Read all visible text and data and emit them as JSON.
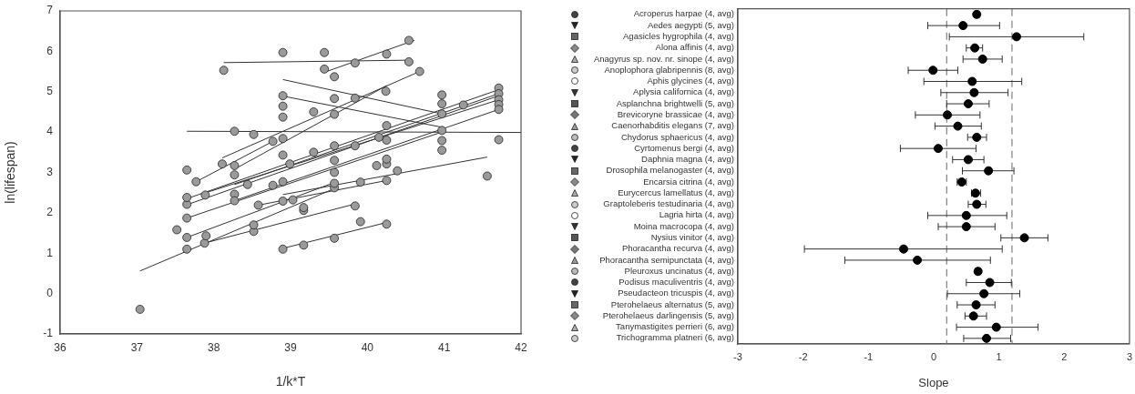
{
  "chart_data": [
    {
      "type": "scatter",
      "xlabel": "1/k*T",
      "ylabel": "ln(lifespan)",
      "xlim": [
        36,
        42
      ],
      "xticks": [
        36,
        37,
        38,
        39,
        40,
        41,
        42
      ],
      "ylim": [
        -1,
        7
      ],
      "yticks": [
        -1,
        0,
        1,
        2,
        3,
        4,
        5,
        6,
        7
      ],
      "series": [
        {
          "color": "#9a9a9a",
          "marker": "circle",
          "x": [
            37.04,
            38.9,
            39.17,
            39.57,
            39.91,
            40.25,
            39.84,
            39.17,
            38.52,
            38.52,
            37.88,
            37.9,
            37.65,
            37.65,
            37.52,
            37.65,
            37.65,
            37.65,
            38.13,
            38.9,
            39.44,
            40.54,
            39.44,
            39.84,
            40.25,
            40.54,
            39.57,
            40.68,
            39.84,
            38.52,
            38.11,
            38.9,
            39.57,
            38.9,
            38.9,
            40.24,
            40.97,
            41.71,
            38.27,
            39.3,
            39.57,
            38.77,
            38.9,
            37.65,
            37.77,
            38.27,
            38.27,
            37.89,
            38.27,
            38.27,
            38.44,
            38.77,
            38.9,
            38.9,
            38.99,
            40.12,
            40.25,
            40.39,
            41.56,
            39.91,
            40.25,
            39.57,
            38.58,
            38.9,
            39.03,
            39.17,
            39.57,
            39.57,
            39.57,
            39.57,
            40.25,
            40.25,
            40.25,
            40.97,
            40.97,
            40.97,
            40.97,
            40.97,
            41.71,
            41.71,
            41.71,
            41.71,
            41.71,
            41.25,
            40.15,
            39.84,
            39.3
          ],
          "values": [
            -0.39,
            1.1,
            1.2,
            1.37,
            1.78,
            1.72,
            2.17,
            2.06,
            1.54,
            1.7,
            1.25,
            1.43,
            1.1,
            1.39,
            1.58,
            1.87,
            2.21,
            2.38,
            5.53,
            5.97,
            5.97,
            5.74,
            5.56,
            5.71,
            5.93,
            6.27,
            5.37,
            5.5,
            4.84,
            3.94,
            3.21,
            4.9,
            4.83,
            4.64,
            4.37,
            5.01,
            4.92,
            3.81,
            4.02,
            4.5,
            4.44,
            3.77,
            3.84,
            3.06,
            2.77,
            3.17,
            2.94,
            2.44,
            2.46,
            2.3,
            2.7,
            2.68,
            2.77,
            3.43,
            3.21,
            3.17,
            3.21,
            3.04,
            2.91,
            2.76,
            2.8,
            2.62,
            2.19,
            2.29,
            2.32,
            2.13,
            3.66,
            3.3,
            3.0,
            2.73,
            4.16,
            3.8,
            3.33,
            4.7,
            4.45,
            4.04,
            3.79,
            3.55,
            5.09,
            4.95,
            4.8,
            4.68,
            4.56,
            4.67,
            3.87,
            3.66,
            3.5
          ]
        },
        {
          "type": "line",
          "color": "#333333",
          "x": [
            38.13,
            40.54
          ],
          "values": [
            5.72,
            5.78
          ]
        },
        {
          "type": "line",
          "color": "#333333",
          "x": [
            39.44,
            40.61
          ],
          "values": [
            5.48,
            6.27
          ]
        },
        {
          "type": "line",
          "color": "#333333",
          "x": [
            37.65,
            42
          ],
          "values": [
            4.02,
            3.99
          ]
        },
        {
          "type": "line",
          "color": "#333333",
          "x": [
            38.9,
            40.97
          ],
          "values": [
            5.3,
            4.45
          ]
        },
        {
          "type": "line",
          "color": "#333333",
          "x": [
            38.9,
            40.97
          ],
          "values": [
            4.89,
            4.12
          ]
        },
        {
          "type": "line",
          "color": "#333333",
          "x": [
            38.11,
            40.68
          ],
          "values": [
            3.36,
            5.5
          ]
        },
        {
          "type": "line",
          "color": "#333333",
          "x": [
            38.27,
            40.25
          ],
          "values": [
            3.08,
            5.15
          ]
        },
        {
          "type": "line",
          "color": "#333333",
          "x": [
            38.9,
            41.56
          ],
          "values": [
            2.45,
            3.38
          ]
        },
        {
          "type": "line",
          "color": "#333333",
          "x": [
            38.9,
            40.25
          ],
          "values": [
            1.12,
            1.76
          ]
        },
        {
          "type": "line",
          "color": "#333333",
          "x": [
            37.9,
            39.84
          ],
          "values": [
            1.26,
            2.22
          ]
        },
        {
          "type": "line",
          "color": "#333333",
          "x": [
            37.04,
            39.57
          ],
          "values": [
            0.56,
            2.6
          ]
        },
        {
          "type": "line",
          "color": "#333333",
          "x": [
            37.65,
            41.71
          ],
          "values": [
            2.35,
            5.05
          ]
        },
        {
          "type": "line",
          "color": "#333333",
          "x": [
            37.65,
            41.71
          ],
          "values": [
            2.2,
            4.9
          ]
        },
        {
          "type": "line",
          "color": "#333333",
          "x": [
            37.9,
            41.71
          ],
          "values": [
            2.5,
            4.8
          ]
        },
        {
          "type": "line",
          "color": "#333333",
          "x": [
            38.27,
            41.71
          ],
          "values": [
            2.3,
            4.56
          ]
        },
        {
          "type": "line",
          "color": "#333333",
          "x": [
            38.27,
            41.71
          ],
          "values": [
            2.7,
            4.95
          ]
        },
        {
          "type": "line",
          "color": "#333333",
          "x": [
            37.65,
            40.97
          ],
          "values": [
            1.87,
            4.0
          ]
        },
        {
          "type": "line",
          "color": "#333333",
          "x": [
            37.65,
            39.57
          ],
          "values": [
            1.39,
            2.75
          ]
        },
        {
          "type": "line",
          "color": "#333333",
          "x": [
            38.58,
            40.25
          ],
          "values": [
            2.19,
            2.8
          ]
        },
        {
          "type": "line",
          "color": "#333333",
          "x": [
            37.77,
            38.77
          ],
          "values": [
            2.77,
            3.77
          ]
        }
      ]
    },
    {
      "type": "scatter",
      "orientation": "horizontal",
      "xlabel": "Slope",
      "xlim": [
        -3,
        3
      ],
      "xticks": [
        -3,
        -2,
        -1,
        0,
        1,
        2,
        3
      ],
      "marker": "circle",
      "color": "#000000",
      "categories": [
        "Acroperus harpae (4, avg)",
        "Aedes aegypti (5, avg)",
        "Agasicles hygrophila (4, avg)",
        "Alona affinis (4, avg)",
        "Anagyrus sp. nov. nr. sinope (4, avg)",
        "Anoplophora glabripennis (8, avg)",
        "Aphis glycines (4, avg)",
        "Aplysia californica (4, avg)",
        "Asplanchna brightwelli (5, avg)",
        "Brevicoryne brassicae (4, avg)",
        "Caenorhabditis elegans (7, avg)",
        "Chydorus sphaericus (4, avg)",
        "Cyrtomenus bergi (4, avg)",
        "Daphnia magna (4, avg)",
        "Drosophila melanogaster (4, avg)",
        "Encarsia citrina (4, avg)",
        "Eurycercus lamellatus (4, avg)",
        "Graptoleberis testudinaria (4, avg)",
        "Lagria hirta (4, avg)",
        "Moina macrocopa (4, avg)",
        "Nysius vinitor (4, avg)",
        "Phoracantha recurva (4, avg)",
        "Phoracantha semipunctata (4, avg)",
        "Pleuroxus uncinatus (4, avg)",
        "Podisus maculiventris (4, avg)",
        "Pseudacteon tricuspis (4, avg)",
        "Pterohelaeus alternatus (5, avg)",
        "Pterohelaeus darlingensis (5, avg)",
        "Tanymastigites perrieri (6, avg)",
        "Trichogramma platneri (6, avg)"
      ],
      "values": [
        0.66,
        0.45,
        1.27,
        0.63,
        0.75,
        -0.01,
        0.59,
        0.62,
        0.53,
        0.21,
        0.37,
        0.66,
        0.07,
        0.53,
        0.84,
        0.43,
        0.64,
        0.66,
        0.5,
        0.5,
        1.39,
        -0.46,
        -0.25,
        0.68,
        0.86,
        0.77,
        0.65,
        0.61,
        0.96,
        0.81
      ],
      "errors": [
        [
          0.62,
          0.7
        ],
        [
          -0.09,
          1.01
        ],
        [
          0.24,
          2.3
        ],
        [
          0.5,
          0.75
        ],
        [
          0.45,
          1.05
        ],
        [
          -0.39,
          0.37
        ],
        [
          -0.15,
          1.35
        ],
        [
          0.11,
          1.14
        ],
        [
          0.2,
          0.85
        ],
        [
          -0.28,
          0.71
        ],
        [
          0.02,
          0.73
        ],
        [
          0.52,
          0.81
        ],
        [
          -0.51,
          0.65
        ],
        [
          0.29,
          0.77
        ],
        [
          0.44,
          1.23
        ],
        [
          0.36,
          0.5
        ],
        [
          0.58,
          0.72
        ],
        [
          0.53,
          0.8
        ],
        [
          -0.09,
          1.12
        ],
        [
          0.07,
          0.94
        ],
        [
          1.03,
          1.75
        ],
        [
          -1.98,
          1.05
        ],
        [
          -1.36,
          0.87
        ],
        [
          0.64,
          0.72
        ],
        [
          0.5,
          1.19
        ],
        [
          0.21,
          1.32
        ],
        [
          0.36,
          0.94
        ],
        [
          0.48,
          0.81
        ],
        [
          0.35,
          1.6
        ],
        [
          0.46,
          1.18
        ]
      ],
      "ref_lines": [
        {
          "axis": "x",
          "value": 0.2,
          "line_style": "dashed",
          "color": "#808080"
        },
        {
          "axis": "x",
          "value": 1.2,
          "line_style": "dashed",
          "color": "#808080"
        }
      ]
    }
  ]
}
